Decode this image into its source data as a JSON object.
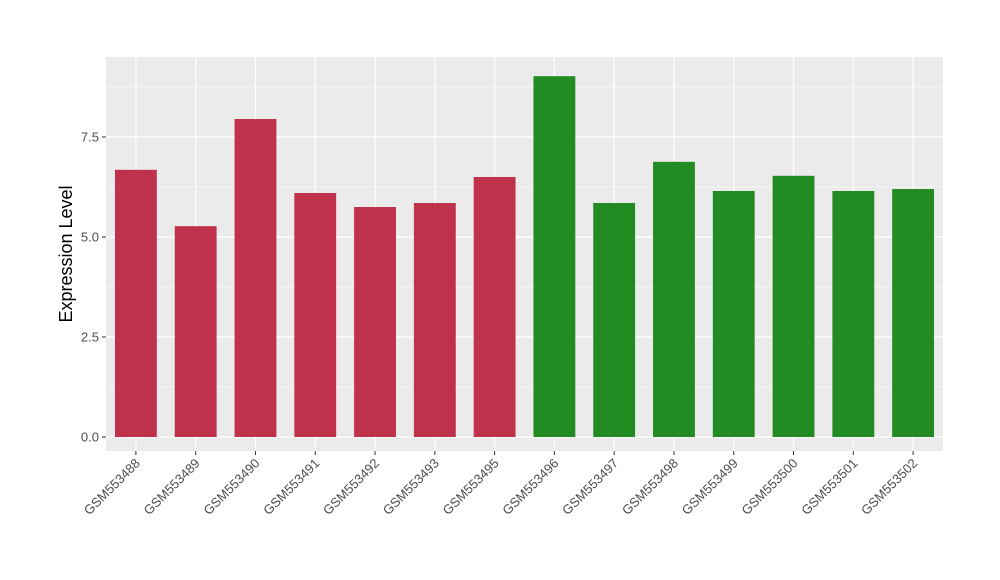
{
  "chart_data": {
    "type": "bar",
    "title": "",
    "xlabel": "",
    "ylabel": "Expression Level",
    "ylim": [
      -0.35,
      9.5
    ],
    "yticks": [
      0.0,
      2.5,
      5.0,
      7.5
    ],
    "ytick_labels": [
      "0.0",
      "2.5",
      "5.0",
      "7.5"
    ],
    "grid": true,
    "legend": "none",
    "categories": [
      "GSM553488",
      "GSM553489",
      "GSM553490",
      "GSM553491",
      "GSM553492",
      "GSM553493",
      "GSM553495",
      "GSM553496",
      "GSM553497",
      "GSM553498",
      "GSM553499",
      "GSM553500",
      "GSM553501",
      "GSM553502"
    ],
    "values": [
      6.68,
      5.27,
      7.95,
      6.1,
      5.75,
      5.85,
      6.5,
      9.02,
      5.85,
      6.88,
      6.15,
      6.53,
      6.15,
      6.2
    ],
    "bar_colors": [
      "#C0314B",
      "#C0314B",
      "#C0314B",
      "#C0314B",
      "#C0314B",
      "#C0314B",
      "#C0314B",
      "#228B22",
      "#228B22",
      "#228B22",
      "#228B22",
      "#228B22",
      "#228B22",
      "#228B22"
    ],
    "panel_background": "#EBEBEB",
    "grid_color": "#FFFFFF"
  }
}
